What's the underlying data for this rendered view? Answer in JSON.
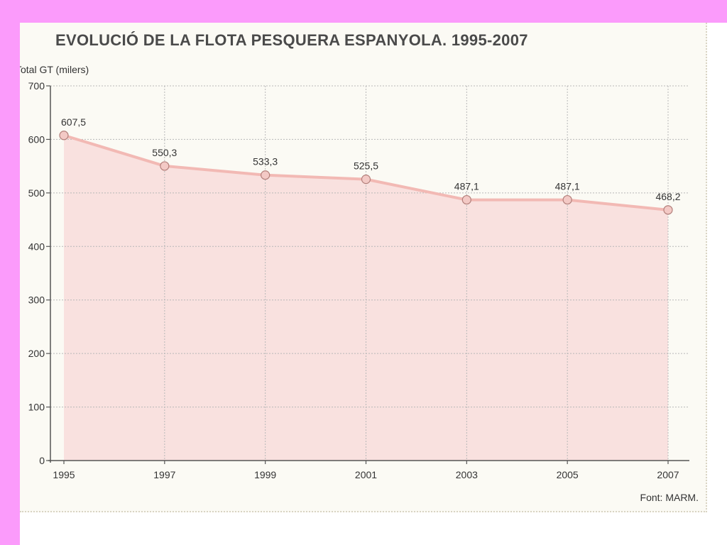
{
  "chart_data": {
    "type": "area",
    "title": "EVOLUCIÓ DE LA FLOTA PESQUERA ESPANYOLA. 1995-2007",
    "ylabel": "Total GT (milers)",
    "xlabel": "",
    "source": "Font: MARM.",
    "categories": [
      "1995",
      "1997",
      "1999",
      "2001",
      "2003",
      "2005",
      "2007"
    ],
    "values": [
      607.5,
      550.3,
      533.3,
      525.5,
      487.1,
      487.1,
      468.2
    ],
    "value_labels": [
      "607,5",
      "550,3",
      "533,3",
      "525,5",
      "487,1",
      "487,1",
      "468,2"
    ],
    "ylim": [
      0,
      700
    ],
    "yticks": [
      0,
      100,
      200,
      300,
      400,
      500,
      600,
      700
    ],
    "ytick_labels": [
      "0",
      "100",
      "200",
      "300",
      "400",
      "500",
      "600",
      "700"
    ],
    "grid": true,
    "colors": {
      "fill": "#f9e1df",
      "line": "#f2b9b4",
      "marker_fill": "#f3c9c5",
      "marker_stroke": "#b27f7a",
      "grid": "#b8b8b8",
      "axis": "#555555"
    }
  }
}
